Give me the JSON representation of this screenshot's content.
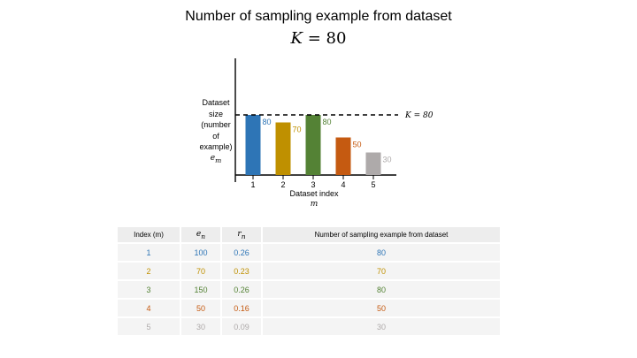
{
  "title": "Number of sampling example from dataset",
  "subtitle_var": "K",
  "subtitle_rest": " = 80",
  "colors": [
    "#2e75b6",
    "#bf9000",
    "#548235",
    "#c55a11",
    "#aeaaaa"
  ],
  "chart_data": {
    "type": "bar",
    "categories": [
      "1",
      "2",
      "3",
      "4",
      "5"
    ],
    "values": [
      80,
      70,
      80,
      50,
      30
    ],
    "data_labels": [
      "80",
      "70",
      "80",
      "50",
      "30"
    ],
    "ylabel_lines": [
      "Dataset",
      "size",
      "(number",
      "of",
      "example)"
    ],
    "ylabel_var": "e",
    "ylabel_sub": "m",
    "xlabel": "Dataset index",
    "xlabel_var": "m",
    "reference_line": {
      "value": 80,
      "label": "K = 80"
    },
    "ylim": [
      0,
      120
    ]
  },
  "table": {
    "headers": [
      "Index (m)",
      "e",
      "r",
      "Number of sampling example from dataset"
    ],
    "header_subs": [
      "",
      "n",
      "n",
      ""
    ],
    "rows": [
      [
        "1",
        "100",
        "0.26",
        "80"
      ],
      [
        "2",
        "70",
        "0.23",
        "70"
      ],
      [
        "3",
        "150",
        "0.26",
        "80"
      ],
      [
        "4",
        "50",
        "0.16",
        "50"
      ],
      [
        "5",
        "30",
        "0.09",
        "30"
      ]
    ]
  }
}
